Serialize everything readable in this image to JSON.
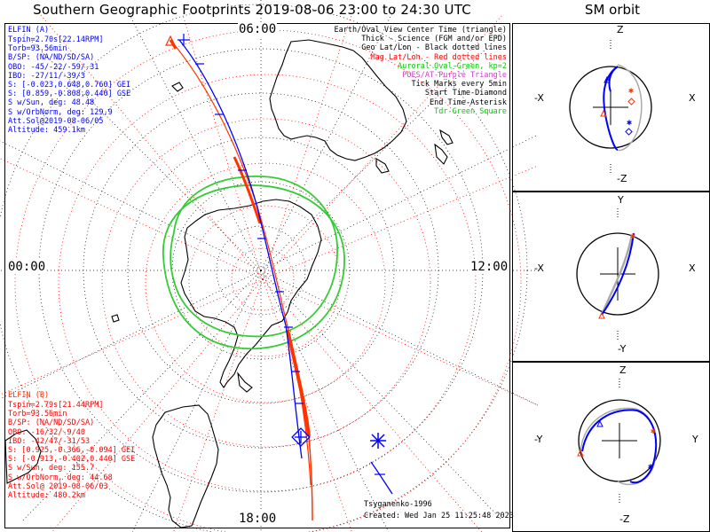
{
  "title": "Southern Geographic Footprints 2019-08-06 23:00 to 24:30 UTC",
  "sm_title": "SM orbit",
  "clock_labels": {
    "top": "06:00",
    "left": "00:00",
    "right": "12:00",
    "bottom": "18:00"
  },
  "elfin_a": {
    "name": "ELFIN (A)",
    "lines": [
      "Tspin=2.70s[22.14RPM]",
      "Torb=93.56min",
      "B/SP: (NA/ND/SD/SA)",
      "OBO: -45/-22/-59/-31",
      "IBO: -27/11/-39/3",
      "S: [-0.023,0.648,0.760] GEI",
      "S: [0.859,-0.808,0.440] GSE",
      "S w/Sun, deg: 48.48",
      "S w/OrbNorm, deg: 129.9",
      "Att.Sol@2019-08-06/05",
      "Altitude: 459.1km"
    ],
    "color": "#0000ff"
  },
  "elfin_b": {
    "name": "ELFIN (B)",
    "lines": [
      "Tspin=2.79s[21.44RPM]",
      "Torb=93.56min",
      "B/SP: (NA/ND/SD/SA)",
      "OBO: -16/32/-9/40",
      "IBO: -42/47/-31/53",
      "S: [0.925,-0.366,-0.094] GEI",
      "S: [-0.913,-0.402,0.440] GSE",
      "S w/Sun, deg: 155.7",
      "S w/OrbNorm, deg: 44.68",
      "Att.Sol@ 2019-08-06/03",
      "Altitude: 480.2km"
    ],
    "color": "#ff0000"
  },
  "legend": [
    {
      "text": "Earth/Oval View Center Time (triangle)",
      "color": "#000000"
    },
    {
      "text": "Thick - Science (FGM and/or EPD)",
      "color": "#000000"
    },
    {
      "text": "Geo Lat/Lon - Black dotted lines",
      "color": "#000000"
    },
    {
      "text": "Mag Lat/Lon - Red dotted lines",
      "color": "#ff0000"
    },
    {
      "text": "Auroral Oval-Green, kp=2",
      "color": "#00cc00"
    },
    {
      "text": "POES/AT-Purple Triangle",
      "color": "#cc44cc"
    },
    {
      "text": "Tick Marks every 5min",
      "color": "#000000"
    },
    {
      "text": "Start Time-Diamond",
      "color": "#000000"
    },
    {
      "text": "End Time-Asterisk",
      "color": "#000000"
    },
    {
      "text": "Tdr-Green Square",
      "color": "#00cc00"
    }
  ],
  "credit": "Tsyganenko-1996",
  "created": "Created: Wed Jan 25 11:25:48 2023",
  "sm_panels": [
    {
      "top": "Z",
      "bottom": "-Z",
      "left": "-X",
      "right": "X"
    },
    {
      "top": "Y",
      "bottom": "-Y",
      "left": "-X",
      "right": "X"
    },
    {
      "top": "Z",
      "bottom": "-Z",
      "left": "-Y",
      "right": "Y"
    }
  ],
  "colors": {
    "a_track": "#0000ff",
    "b_track": "#ff2200",
    "mag_grid": "#ff0000",
    "oval": "#33cc33",
    "text_blue": "#0000ff",
    "text_red": "#ff3300"
  }
}
